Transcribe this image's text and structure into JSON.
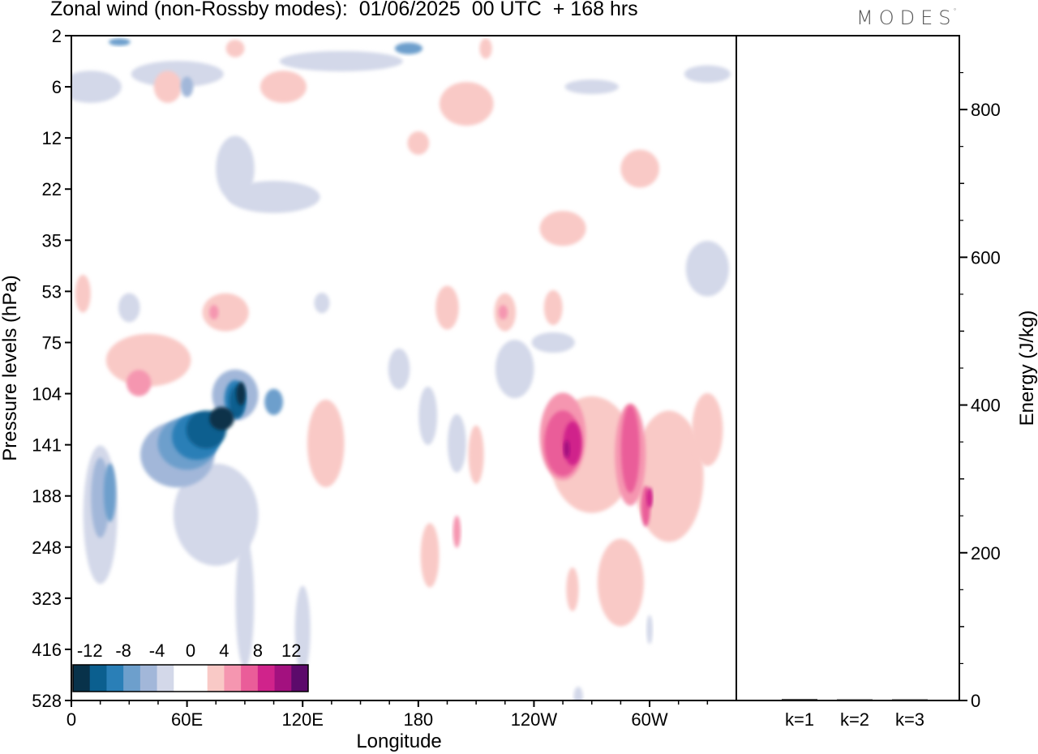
{
  "header": {
    "title": "Zonal wind (non-Rossby modes):  01/06/2025  00 UTC  + 168 hrs",
    "logo_text": "MODES",
    "logo_mark": "°"
  },
  "chart_data": [
    {
      "type": "heatmap",
      "xlabel": "Longitude",
      "ylabel": "Pressure levels (hPa)",
      "x_ticks": [
        "0",
        "60E",
        "120E",
        "180",
        "120W",
        "60W"
      ],
      "x_range_deg": [
        0,
        345
      ],
      "y_ticks": [
        2,
        6,
        12,
        22,
        35,
        53,
        75,
        104,
        141,
        188,
        248,
        323,
        416,
        528
      ],
      "colorbar": {
        "labels": [
          "-12",
          "-8",
          "-4",
          "0",
          "4",
          "8",
          "12"
        ],
        "colors": [
          "#08324a",
          "#0b5f8f",
          "#2a7fb7",
          "#6d9fcc",
          "#a2b7d9",
          "#d3d8e9",
          "#ffffff",
          "#ffffff",
          "#f9c9c6",
          "#f596b0",
          "#ea5d99",
          "#d0238b",
          "#a3117f",
          "#5c0a6b"
        ]
      },
      "features": [
        {
          "sign": "negative",
          "lon": 75,
          "level": 120,
          "peak": -14,
          "description": "strong easterly core"
        },
        {
          "sign": "negative",
          "lon": 15,
          "level": 188,
          "peak": -6
        },
        {
          "sign": "negative",
          "lon": 345,
          "level": 53,
          "peak": -6
        },
        {
          "sign": "positive",
          "lon": 262,
          "level": 141,
          "peak": 12,
          "description": "strong westerly core"
        },
        {
          "sign": "positive",
          "lon": 285,
          "level": 160,
          "peak": 10
        },
        {
          "sign": "positive",
          "lon": 35,
          "level": 90,
          "peak": 6
        },
        {
          "sign": "positive",
          "lon": 200,
          "level": 53,
          "peak": 6
        }
      ]
    },
    {
      "type": "bar",
      "categories": [
        "k=1",
        "k=2",
        "k=3"
      ],
      "values": [
        2,
        1.5,
        1
      ],
      "ylabel": "Energy (J/kg)",
      "ylim": [
        0,
        900
      ],
      "y_ticks": [
        0,
        200,
        400,
        600,
        800
      ]
    }
  ]
}
